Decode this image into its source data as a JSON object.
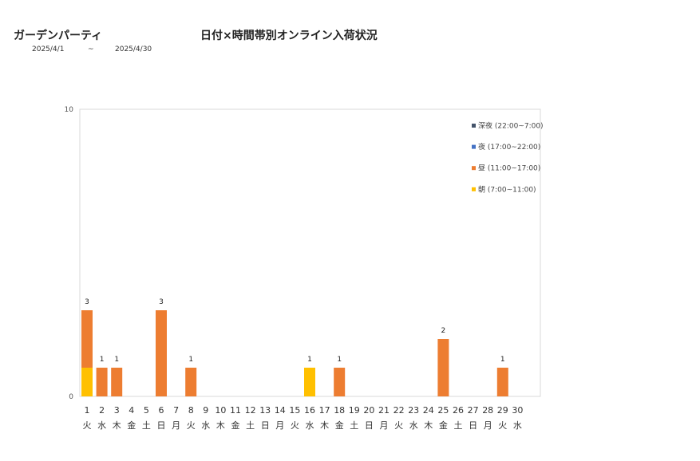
{
  "shop_name": "ガーデンパーティ",
  "period": {
    "start": "2025/4/1",
    "separator": "~",
    "end": "2025/4/30"
  },
  "chart_data": {
    "type": "bar",
    "stacked": true,
    "title": "日付×時間帯別オンライン入荷状況",
    "categories": [
      "1",
      "2",
      "3",
      "4",
      "5",
      "6",
      "7",
      "8",
      "9",
      "10",
      "11",
      "12",
      "13",
      "14",
      "15",
      "16",
      "17",
      "18",
      "19",
      "20",
      "21",
      "22",
      "23",
      "24",
      "25",
      "26",
      "27",
      "28",
      "29",
      "30"
    ],
    "weekdays": [
      "火",
      "水",
      "木",
      "金",
      "土",
      "日",
      "月",
      "火",
      "水",
      "木",
      "金",
      "土",
      "日",
      "月",
      "火",
      "水",
      "木",
      "金",
      "土",
      "日",
      "月",
      "火",
      "水",
      "木",
      "金",
      "土",
      "日",
      "月",
      "火",
      "水"
    ],
    "ylim": [
      0,
      10
    ],
    "yticks": [
      "0",
      "10"
    ],
    "grid": false,
    "legend_position": "top-right",
    "series": [
      {
        "name": "朝 (7:00~11:00)",
        "color": "#FFC000",
        "values": [
          1,
          0,
          0,
          0,
          0,
          0,
          0,
          0,
          0,
          0,
          0,
          0,
          0,
          0,
          0,
          1,
          0,
          0,
          0,
          0,
          0,
          0,
          0,
          0,
          0,
          0,
          0,
          0,
          0,
          0
        ]
      },
      {
        "name": "昼 (11:00~17:00)",
        "color": "#ED7D31",
        "values": [
          2,
          1,
          1,
          0,
          0,
          3,
          0,
          1,
          0,
          0,
          0,
          0,
          0,
          0,
          0,
          0,
          0,
          1,
          0,
          0,
          0,
          0,
          0,
          0,
          2,
          0,
          0,
          0,
          1,
          0
        ]
      },
      {
        "name": "夜 (17:00~22:00)",
        "color": "#4472C4",
        "values": [
          0,
          0,
          0,
          0,
          0,
          0,
          0,
          0,
          0,
          0,
          0,
          0,
          0,
          0,
          0,
          0,
          0,
          0,
          0,
          0,
          0,
          0,
          0,
          0,
          0,
          0,
          0,
          0,
          0,
          0
        ]
      },
      {
        "name": "深夜 (22:00~7:00)",
        "color": "#44546A",
        "values": [
          0,
          0,
          0,
          0,
          0,
          0,
          0,
          0,
          0,
          0,
          0,
          0,
          0,
          0,
          0,
          0,
          0,
          0,
          0,
          0,
          0,
          0,
          0,
          0,
          0,
          0,
          0,
          0,
          0,
          0
        ]
      }
    ],
    "totals": [
      "3",
      "1",
      "1",
      "",
      "",
      "3",
      "",
      "1",
      "",
      "",
      "",
      "",
      "",
      "",
      "",
      "1",
      "",
      "1",
      "",
      "",
      "",
      "",
      "",
      "",
      "2",
      "",
      "",
      "",
      "1",
      ""
    ],
    "legend_order": [
      3,
      2,
      1,
      0
    ]
  }
}
